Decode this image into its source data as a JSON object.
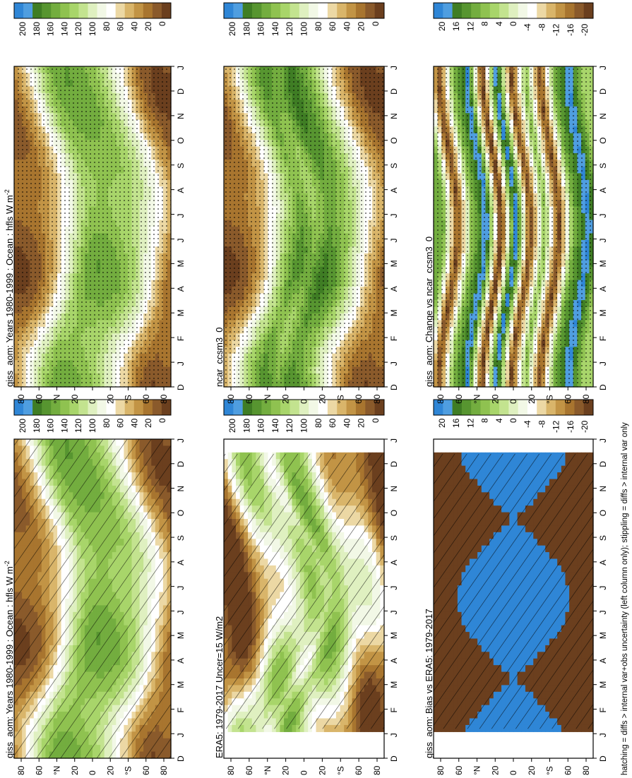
{
  "footnote": "hatching = diffs > internal var+obs uncertainty (left column only); stippling = diffs > internal var only",
  "month_labels": [
    "D",
    "J",
    "F",
    "M",
    "A",
    "M",
    "J",
    "J",
    "A",
    "S",
    "O",
    "N",
    "D",
    "J"
  ],
  "lat_labels": [
    "80",
    "60",
    "°N",
    "20",
    "0",
    "20",
    "°S",
    "60",
    "80"
  ],
  "colors": {
    "abs_palette": [
      "#6b3f1e",
      "#8a5a2b",
      "#a8752f",
      "#c29445",
      "#d9b56a",
      "#ecd8a4",
      "#ffffff",
      "#f2f8e6",
      "#dff0c0",
      "#c3e38f",
      "#a8d56a",
      "#8fc250",
      "#73ad3f",
      "#579530",
      "#3f7d24",
      "#4f9ee0",
      "#2f86d6"
    ],
    "diff_palette": [
      "#6b3f1e",
      "#8a5a2b",
      "#a8752f",
      "#c29445",
      "#d9b56a",
      "#ecd8a4",
      "#ffffff",
      "#f2f8e6",
      "#dff0c0",
      "#c3e38f",
      "#a8d56a",
      "#8fc250",
      "#73ad3f",
      "#579530",
      "#3f7d24",
      "#4f9ee0",
      "#2f86d6"
    ]
  },
  "chart_data": [
    {
      "type": "heatmap",
      "id": "p1",
      "title": "giss_aom: Years 1980-1999 : Ocean : hfls W m",
      "title_sup": "-2",
      "colorbar_ticks": [
        "200",
        "180",
        "160",
        "140",
        "120",
        "100",
        "80",
        "60",
        "40",
        "20",
        "0"
      ],
      "overlay": "hatch",
      "kind": "abs",
      "profile": [
        20,
        30,
        60,
        100,
        140,
        150,
        145,
        135,
        110,
        80,
        40,
        20
      ],
      "pattern": "annual",
      "months_covered": [
        0,
        13
      ]
    },
    {
      "type": "heatmap",
      "id": "p2",
      "title": "giss_aom: Years 1980-1999 : Ocean : hfls W m",
      "title_sup": "-2",
      "colorbar_ticks": [
        "200",
        "180",
        "160",
        "140",
        "120",
        "100",
        "80",
        "60",
        "40",
        "20",
        "0"
      ],
      "overlay": "stipple",
      "kind": "abs",
      "profile": [
        20,
        30,
        60,
        100,
        140,
        150,
        145,
        135,
        110,
        80,
        40,
        20
      ],
      "pattern": "annual",
      "months_covered": [
        0,
        13
      ]
    },
    {
      "type": "heatmap",
      "id": "p3",
      "title": "ERA5: 1979-2017 Uncer=15 W/m2",
      "title_sup": "",
      "colorbar_ticks": [
        "200",
        "180",
        "160",
        "140",
        "120",
        "100",
        "80",
        "60",
        "40",
        "20",
        "0"
      ],
      "overlay": "hatch",
      "kind": "abs",
      "profile": [
        15,
        40,
        80,
        120,
        130,
        100,
        140,
        120,
        90,
        60,
        30,
        15
      ],
      "pattern": "era",
      "months_covered": [
        1.2,
        12.4
      ]
    },
    {
      "type": "heatmap",
      "id": "p4",
      "title": "ncar_ccsm3_0",
      "title_sup": "",
      "colorbar_ticks": [
        "200",
        "180",
        "160",
        "140",
        "120",
        "100",
        "80",
        "60",
        "40",
        "20",
        "0"
      ],
      "overlay": "stipple",
      "kind": "abs",
      "profile": [
        20,
        35,
        70,
        120,
        160,
        140,
        170,
        150,
        110,
        70,
        35,
        20
      ],
      "pattern": "annual",
      "months_covered": [
        0,
        13
      ]
    },
    {
      "type": "heatmap",
      "id": "p5",
      "title": "giss_aom: Bias vs ERA5: 1979-2017",
      "title_sup": "",
      "colorbar_ticks": [
        "20",
        "16",
        "12",
        "8",
        "4",
        "0",
        "-4",
        "-8",
        "-12",
        "-16",
        "-20"
      ],
      "overlay": "hatch",
      "kind": "diff",
      "profile": [
        -22,
        -22,
        -22,
        -22,
        25,
        25,
        25,
        25,
        -22,
        -22,
        -22,
        -22
      ],
      "pattern": "bias",
      "months_covered": [
        1.2,
        12.4
      ]
    },
    {
      "type": "heatmap",
      "id": "p6",
      "title": "giss_aom: Change vs ncar_ccsm3_0",
      "title_sup": "",
      "colorbar_ticks": [
        "20",
        "16",
        "12",
        "8",
        "4",
        "0",
        "-4",
        "-8",
        "-12",
        "-16",
        "-20"
      ],
      "overlay": "stipple",
      "kind": "diff",
      "profile": [
        10,
        -20,
        8,
        20,
        -22,
        22,
        -20,
        8,
        -20,
        10,
        20,
        5
      ],
      "pattern": "change",
      "months_covered": [
        0,
        13
      ]
    }
  ]
}
